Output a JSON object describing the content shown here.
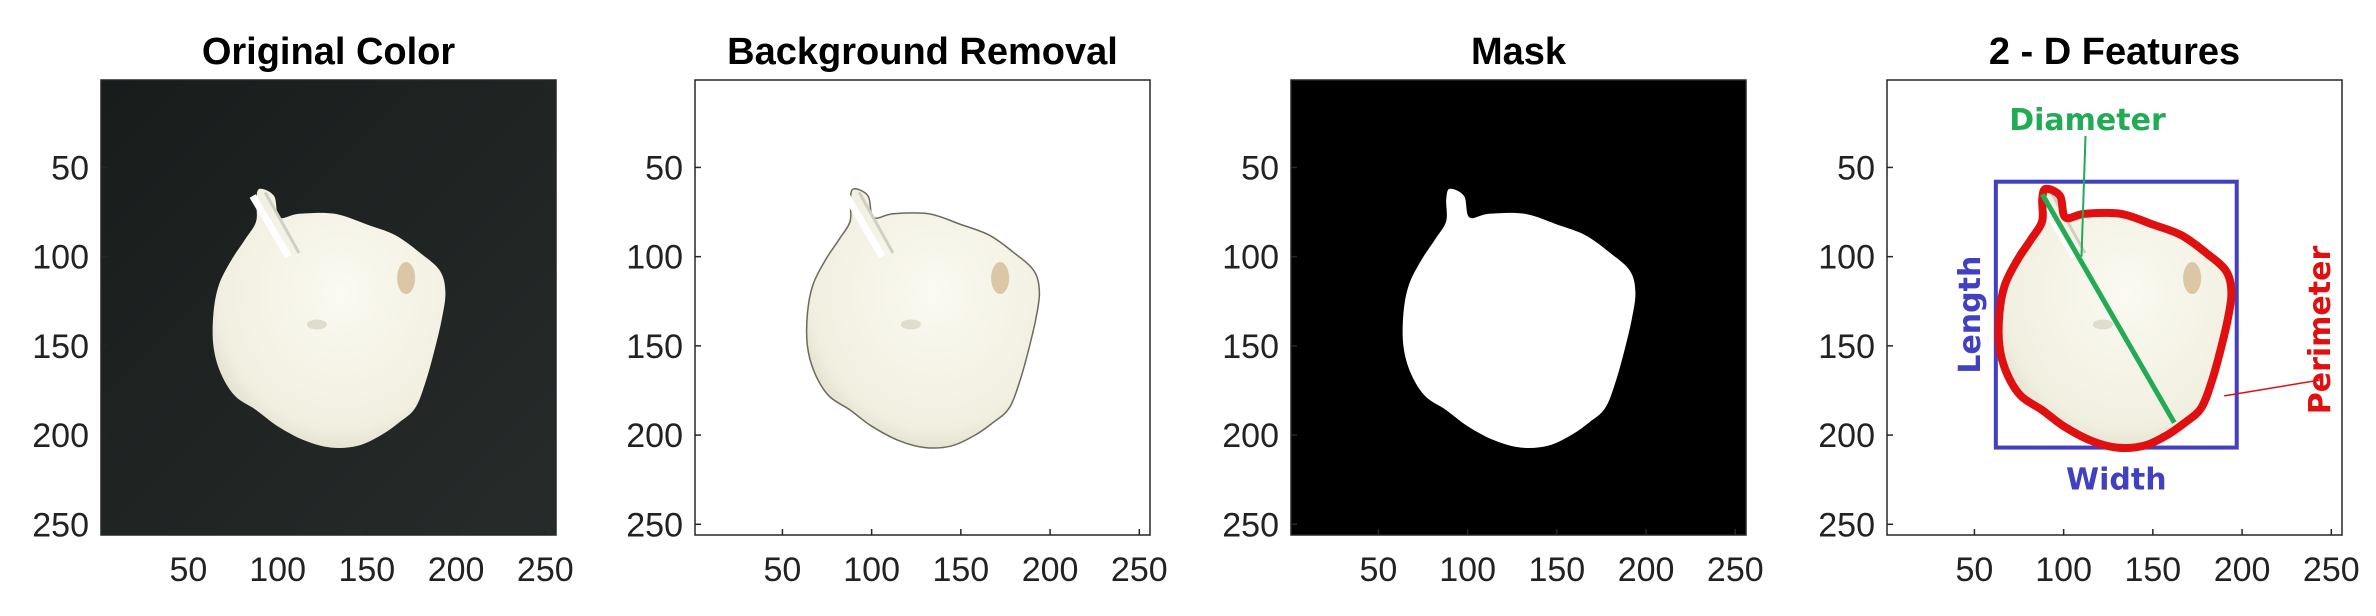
{
  "panels": [
    {
      "title": "Original Color",
      "variant": "original"
    },
    {
      "title": "Background Removal",
      "variant": "removed"
    },
    {
      "title": "Mask",
      "variant": "mask"
    },
    {
      "title": "2 - D Features",
      "variant": "features"
    }
  ],
  "chart_data": {
    "type": "image",
    "axes": {
      "xlim": [
        1,
        256
      ],
      "ylim": [
        1,
        256
      ],
      "y_reversed": true,
      "xticks": [
        50,
        100,
        150,
        200,
        250
      ],
      "yticks": [
        50,
        100,
        150,
        200,
        250
      ]
    },
    "features": {
      "bounding_box": {
        "x": [
          62,
          197
        ],
        "y": [
          58,
          207
        ]
      },
      "diameter": {
        "from": [
          88,
          65
        ],
        "to": [
          162,
          193
        ]
      },
      "labels": {
        "diameter": "Diameter",
        "length": "Length",
        "width": "Width",
        "perimeter": "Perimeter"
      },
      "colors": {
        "box": "#4040c0",
        "diameter": "#22aa55",
        "perimeter": "#e01010"
      }
    }
  }
}
